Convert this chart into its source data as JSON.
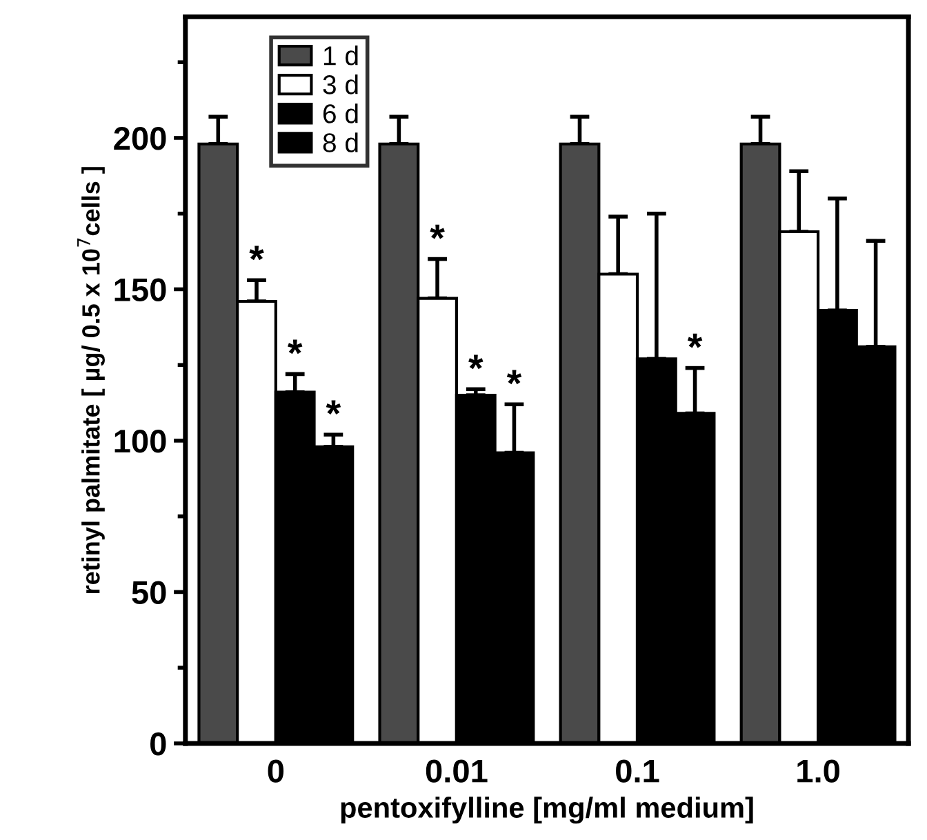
{
  "chart_data": {
    "type": "bar",
    "categories": [
      "0",
      "0.01",
      "0.1",
      "1.0"
    ],
    "series": [
      {
        "name": "1 d",
        "color": "#4a4a4a",
        "values": [
          198,
          198,
          198,
          198
        ],
        "errors": [
          [
            198,
            207
          ],
          [
            198,
            207
          ],
          [
            198,
            207
          ],
          [
            198,
            207
          ]
        ]
      },
      {
        "name": "3 d",
        "color": "#ffffff",
        "values": [
          146,
          147,
          155,
          169
        ],
        "errors": [
          [
            146,
            153
          ],
          [
            147,
            160
          ],
          [
            155,
            174
          ],
          [
            169,
            189
          ]
        ]
      },
      {
        "name": "6 d",
        "color": "#000000",
        "values": [
          116,
          115,
          127,
          143
        ],
        "errors": [
          [
            116,
            122
          ],
          [
            115,
            117
          ],
          [
            127,
            175
          ],
          [
            143,
            180
          ]
        ]
      },
      {
        "name": "8 d",
        "color": "#000000",
        "values": [
          98,
          96,
          109,
          131
        ],
        "errors": [
          [
            98,
            102
          ],
          [
            96,
            112
          ],
          [
            109,
            124
          ],
          [
            131,
            166
          ]
        ]
      }
    ],
    "ylim": [
      0,
      240
    ],
    "yticks": [
      0,
      50,
      100,
      150,
      200
    ],
    "xlabel": "pentoxifylline [mg/ml medium]",
    "ylabel": "retinyl palmitate [ µg/ 0.5 x 10$^{7}$cells ]",
    "legend": "top left",
    "grid": false,
    "annotations": [
      {
        "text": "*",
        "x": "0",
        "y": 146
      },
      {
        "text": "*",
        "x": "0",
        "y": 122
      },
      {
        "text": "*",
        "x": "0",
        "y": 102
      },
      {
        "text": "*",
        "x": "0.01",
        "y": 147
      },
      {
        "text": "*",
        "x": "0.01",
        "y": 117
      },
      {
        "text": "*",
        "x": "0.01",
        "y": 112
      },
      {
        "text": "*",
        "x": "0.1",
        "y": 124
      }
    ]
  }
}
